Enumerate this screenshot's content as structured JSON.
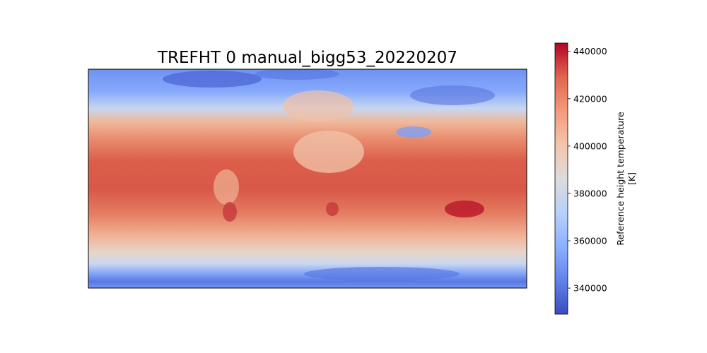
{
  "chart_data": {
    "type": "heatmap",
    "title": "TREFHT 0 manual_bigg53_20220207",
    "colorbar": {
      "label_line1": "Reference height temperature",
      "label_line2": "[K]",
      "range": [
        329000,
        443500
      ],
      "ticks": [
        340000,
        360000,
        380000,
        400000,
        420000,
        440000
      ],
      "tick_labels": [
        "340000",
        "360000",
        "380000",
        "400000",
        "420000",
        "440000"
      ],
      "colormap": "coolwarm",
      "colormap_stops": [
        "#3b4cc0",
        "#6282ea",
        "#8db0fe",
        "#b8d0f9",
        "#dddcdc",
        "#f5c4ac",
        "#f49a7b",
        "#e0654f",
        "#b40426"
      ]
    },
    "map": {
      "projection": "plate-carree",
      "description_values": {
        "tropics": 425000,
        "midlatitudes": 405000,
        "high_latitudes": 350000,
        "antarctica": 340000,
        "australia_max": 440000
      }
    }
  }
}
